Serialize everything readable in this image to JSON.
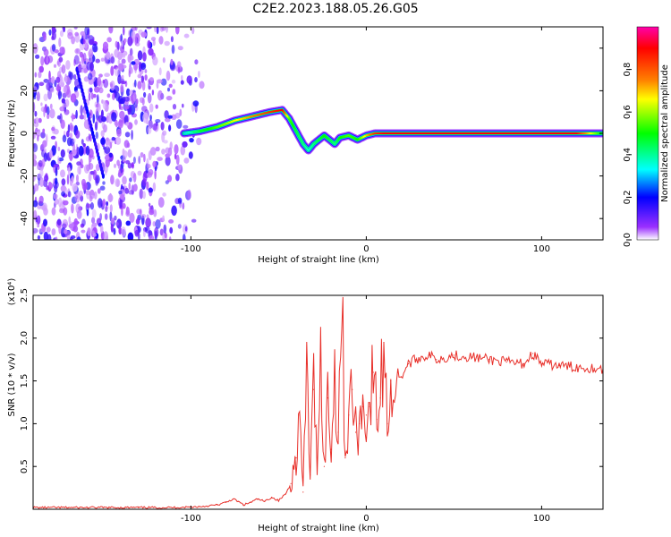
{
  "title": "C2E2.2023.188.05.26.G05",
  "chart_data": [
    {
      "type": "heatmap",
      "title": "",
      "xlabel": "Height of straight line (km)",
      "ylabel": "Frequency (Hz)",
      "xlim": [
        -190,
        135
      ],
      "ylim": [
        -50,
        50
      ],
      "xticks": [
        -100,
        0,
        100
      ],
      "yticks": [
        -40,
        -20,
        0,
        20,
        40
      ],
      "colorbar": {
        "label": "Normalized spectral amplitude",
        "range": [
          0,
          1
        ],
        "ticks": [
          "0.0",
          "0.2",
          "0.4",
          "0.6",
          "0.8"
        ],
        "colors": [
          "#ffffff",
          "#9b30ff",
          "#0000ff",
          "#00ffff",
          "#00ff00",
          "#ffff00",
          "#ff8000",
          "#ff0000",
          "#ff00aa"
        ]
      },
      "ridge": {
        "x": [
          -104,
          -95,
          -85,
          -75,
          -65,
          -55,
          -48,
          -44,
          -40,
          -36,
          -33,
          -30,
          -27,
          -24,
          -21,
          -18,
          -15,
          -10,
          -5,
          0,
          5,
          10,
          20,
          40,
          60,
          80,
          100,
          120,
          135
        ],
        "y": [
          0,
          1,
          3,
          6,
          8,
          10,
          11,
          7,
          1,
          -5,
          -8,
          -5,
          -3,
          -1,
          -3,
          -5,
          -2,
          -1,
          -3,
          -1,
          0,
          0,
          0,
          0,
          0,
          0,
          0,
          0,
          0
        ],
        "amplitude": [
          0.3,
          0.45,
          0.55,
          0.65,
          0.75,
          0.85,
          0.9,
          0.55,
          0.45,
          0.4,
          0.35,
          0.4,
          0.45,
          0.5,
          0.45,
          0.4,
          0.5,
          0.55,
          0.5,
          0.7,
          0.85,
          0.9,
          0.9,
          0.9,
          0.9,
          0.9,
          0.9,
          0.9,
          0.45
        ]
      },
      "noise_region_x": [
        -190,
        -90
      ],
      "streak": {
        "x": [
          -165,
          -150
        ],
        "y": [
          30,
          -20
        ]
      }
    },
    {
      "type": "line",
      "title": "",
      "xlabel": "Height of straight line (km)",
      "ylabel": "SNR (10 * v/v)",
      "y_multiplier": "(x10⁴)",
      "xlim": [
        -190,
        135
      ],
      "ylim": [
        0,
        2.5
      ],
      "xticks": [
        -100,
        0,
        100
      ],
      "yticks": [
        "0.5",
        "1.0",
        "1.5",
        "2.0",
        "2.5"
      ],
      "series": [
        {
          "color": "#e8302a",
          "x": [
            -190,
            -170,
            -150,
            -130,
            -110,
            -95,
            -85,
            -80,
            -76,
            -73,
            -70,
            -66,
            -62,
            -58,
            -54,
            -50,
            -46,
            -43,
            -40,
            -38,
            -36,
            -34,
            -32,
            -30,
            -28,
            -26,
            -24,
            -22,
            -20,
            -18,
            -16,
            -14,
            -12,
            -10,
            -8,
            -6,
            -4,
            -2,
            0,
            2,
            4,
            6,
            8,
            10,
            12,
            14,
            16,
            18,
            20,
            24,
            28,
            32,
            36,
            40,
            50,
            60,
            70,
            80,
            90,
            95,
            100,
            110,
            120,
            130,
            135
          ],
          "y": [
            0.02,
            0.02,
            0.02,
            0.02,
            0.02,
            0.03,
            0.05,
            0.08,
            0.12,
            0.09,
            0.05,
            0.08,
            0.12,
            0.09,
            0.14,
            0.1,
            0.18,
            0.3,
            0.6,
            1.1,
            0.2,
            1.7,
            0.4,
            1.4,
            0.6,
            1.8,
            0.5,
            1.3,
            0.7,
            1.6,
            0.9,
            2.5,
            0.6,
            1.1,
            1.4,
            0.9,
            1.0,
            1.2,
            1.1,
            1.2,
            1.6,
            1.05,
            1.3,
            1.95,
            1.0,
            1.5,
            1.25,
            1.6,
            1.55,
            1.7,
            1.75,
            1.78,
            1.8,
            1.75,
            1.8,
            1.78,
            1.75,
            1.72,
            1.7,
            1.82,
            1.7,
            1.68,
            1.66,
            1.65,
            1.64
          ]
        }
      ]
    }
  ]
}
